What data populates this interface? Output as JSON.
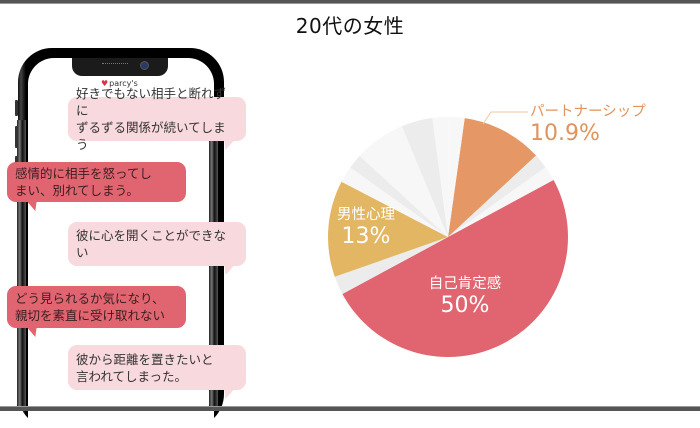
{
  "title": "20代の女性",
  "phone": {
    "brand_logo": "parcy's",
    "messages": [
      {
        "side": "right",
        "style": "light",
        "lines": [
          "好きでもない相手と断れずに",
          "ずるずる関係が続いてしまう"
        ]
      },
      {
        "side": "left",
        "style": "dark",
        "lines": [
          "感情的に相手を怒ってし",
          "まい、別れてしまう。"
        ]
      },
      {
        "side": "right",
        "style": "light",
        "lines": [
          "彼に心を開くことができない"
        ]
      },
      {
        "side": "left",
        "style": "dark",
        "lines": [
          "どう見られるか気になり、",
          "親切を素直に受け取れない"
        ]
      },
      {
        "side": "right",
        "style": "light",
        "lines": [
          "彼から距離を置きたいと",
          "言われてしまった。"
        ]
      }
    ]
  },
  "colors": {
    "self_esteem": "#e06570",
    "male_psychology": "#e3b664",
    "partnership": "#e59865",
    "other_light": "#f7f7f7",
    "other_mid": "#ececec"
  },
  "labels": {
    "self_esteem": {
      "name": "自己肯定感",
      "pct": "50%"
    },
    "male_psychology": {
      "name": "男性心理",
      "pct": "13%"
    },
    "partnership": {
      "name": "パートナーシップ",
      "pct": "10.9%"
    }
  },
  "chart_data": {
    "type": "pie",
    "title": "20代の女性",
    "start_angle_deg": 8,
    "direction": "clockwise",
    "slices": [
      {
        "label": "パートナーシップ",
        "value": 10.9,
        "color": "#e59865",
        "labeled": true
      },
      {
        "label": "",
        "value": 2.0,
        "color": "#ececec",
        "labeled": false
      },
      {
        "label": "",
        "value": 2.0,
        "color": "#f7f7f7",
        "labeled": false
      },
      {
        "label": "自己肯定感",
        "value": 50.0,
        "color": "#e06570",
        "labeled": true
      },
      {
        "label": "",
        "value": 2.5,
        "color": "#ececec",
        "labeled": false
      },
      {
        "label": "男性心理",
        "value": 13.0,
        "color": "#e3b664",
        "labeled": true
      },
      {
        "label": "",
        "value": 2.2,
        "color": "#f7f7f7",
        "labeled": false
      },
      {
        "label": "",
        "value": 2.0,
        "color": "#ececec",
        "labeled": false
      },
      {
        "label": "",
        "value": 6.9,
        "color": "#f7f7f7",
        "labeled": false
      },
      {
        "label": "",
        "value": 4.2,
        "color": "#ececec",
        "labeled": false
      },
      {
        "label": "",
        "value": 2.1,
        "color": "#f7f7f7",
        "labeled": false
      },
      {
        "label": "",
        "value": 2.2,
        "color": "#f7f7f7",
        "labeled": false
      }
    ],
    "legend": "none",
    "annotations": [
      "自己肯定感 50%",
      "男性心理 13%",
      "パートナーシップ 10.9%"
    ]
  }
}
